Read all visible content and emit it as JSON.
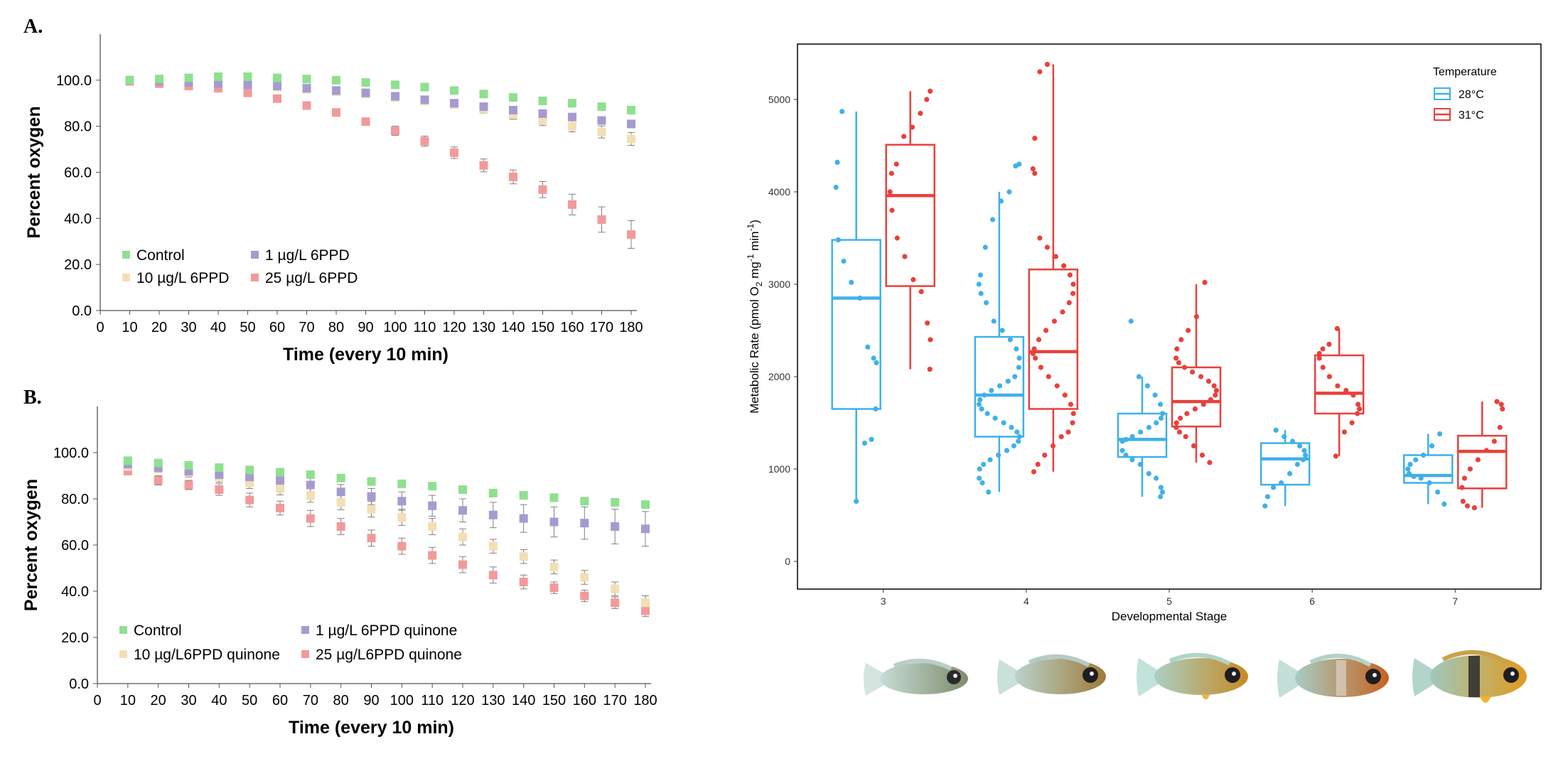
{
  "panel_a_label": "A.",
  "panel_b_label": "B.",
  "fish_images": [
    "stage-3-fish",
    "stage-4-fish",
    "stage-5-fish",
    "stage-6-fish",
    "stage-7-fish"
  ],
  "colors": {
    "control": "#8fe08f",
    "low": "#a59bd0",
    "mid": "#f2dfb4",
    "high": "#f29a9a",
    "c28": "#3fb1e8",
    "c31": "#e8413b"
  },
  "chart_data": [
    {
      "id": "panel-a",
      "type": "scatter",
      "title": "",
      "xlabel": "Time (every 10 min)",
      "ylabel": "Percent oxygen",
      "xlim": [
        0,
        180
      ],
      "ylim": [
        0,
        120
      ],
      "xticks": [
        "0",
        "10",
        "20",
        "30",
        "40",
        "50",
        "60",
        "70",
        "80",
        "90",
        "100",
        "110",
        "120",
        "130",
        "140",
        "150",
        "160",
        "170",
        "180"
      ],
      "yticks": [
        "0.0",
        "20.0",
        "40.0",
        "60.0",
        "80.0",
        "100.0"
      ],
      "x": [
        10,
        20,
        30,
        40,
        50,
        60,
        70,
        80,
        90,
        100,
        110,
        120,
        130,
        140,
        150,
        160,
        170,
        180
      ],
      "series": [
        {
          "name": "Control",
          "key": "control",
          "values": [
            100,
            100.5,
            101,
            101.5,
            101.5,
            101,
            100.5,
            100,
            99,
            98,
            97,
            95.5,
            94,
            92.5,
            91,
            90,
            88.5,
            87
          ],
          "errors": [
            0.3,
            0.4,
            0.5,
            0.5,
            0.5,
            0.5,
            0.5,
            0.5,
            0.6,
            0.6,
            0.7,
            0.7,
            0.8,
            0.8,
            0.9,
            1,
            1,
            1
          ]
        },
        {
          "name": "1 µg/L 6PPD",
          "key": "low",
          "values": [
            100,
            99.5,
            99,
            98.5,
            98,
            97.5,
            96.5,
            95.5,
            94.5,
            93,
            91.5,
            90,
            88.5,
            87,
            85.5,
            84,
            82.5,
            81
          ],
          "errors": [
            0.3,
            0.4,
            0.5,
            0.5,
            0.6,
            0.6,
            0.7,
            0.7,
            0.8,
            0.9,
            1,
            1,
            1.1,
            1.2,
            1.3,
            1.3,
            1.4,
            1.5
          ]
        },
        {
          "name": "10 µg/L 6PPD",
          "key": "mid",
          "values": [
            100,
            99.5,
            99,
            98.5,
            98,
            97,
            96,
            95,
            94,
            92.5,
            91,
            89.5,
            87.5,
            85,
            82.5,
            80,
            77.5,
            74.5
          ],
          "errors": [
            0.5,
            0.6,
            0.7,
            0.8,
            0.8,
            0.9,
            1,
            1.1,
            1.2,
            1.3,
            1.5,
            1.6,
            1.8,
            2,
            2.2,
            2.4,
            2.6,
            2.8
          ]
        },
        {
          "name": "25 µg/L 6PPD",
          "key": "high",
          "values": [
            99.5,
            98.5,
            97.5,
            96.5,
            94.5,
            92,
            89,
            86,
            82,
            78,
            73.5,
            68.5,
            63,
            58,
            52.5,
            46,
            39.5,
            33
          ],
          "errors": [
            0.5,
            0.6,
            0.7,
            0.8,
            0.9,
            1,
            1.1,
            1.3,
            1.5,
            2,
            2.2,
            2.5,
            2.8,
            3,
            3.5,
            4.5,
            5.5,
            6
          ]
        }
      ],
      "legend": "lower-left"
    },
    {
      "id": "panel-b",
      "type": "scatter",
      "title": "",
      "xlabel": "Time (every 10 min)",
      "ylabel": "Percent oxygen",
      "xlim": [
        0,
        180
      ],
      "ylim": [
        0,
        120
      ],
      "xticks": [
        "0",
        "10",
        "20",
        "30",
        "40",
        "50",
        "60",
        "70",
        "80",
        "90",
        "100",
        "110",
        "120",
        "130",
        "140",
        "150",
        "160",
        "170",
        "180"
      ],
      "yticks": [
        "0.0",
        "20.0",
        "40.0",
        "60.0",
        "80.0",
        "100.0"
      ],
      "x": [
        10,
        20,
        30,
        40,
        50,
        60,
        70,
        80,
        90,
        100,
        110,
        120,
        130,
        140,
        150,
        160,
        170,
        180
      ],
      "series": [
        {
          "name": "Control",
          "key": "control",
          "values": [
            96.5,
            95.5,
            94.5,
            93.5,
            92.5,
            91.5,
            90.5,
            89,
            87.5,
            86.5,
            85.5,
            84,
            82.5,
            81.5,
            80.5,
            79,
            78.5,
            77.5
          ],
          "errors": [
            1,
            1,
            1,
            1,
            1,
            1,
            1,
            1,
            1,
            1,
            1,
            1,
            1.2,
            1.2,
            1.3,
            1.3,
            1.4,
            1.5
          ]
        },
        {
          "name": "1 µg/L 6PPD quinone",
          "key": "low",
          "values": [
            95,
            93.5,
            92,
            90.5,
            89.5,
            88,
            86,
            83,
            81,
            79,
            77,
            75,
            73,
            71.5,
            70,
            69.5,
            68,
            67
          ],
          "errors": [
            1.5,
            1.6,
            1.8,
            2,
            2.2,
            2.5,
            3,
            3.2,
            3.5,
            4,
            4.5,
            5,
            5.5,
            6,
            6.5,
            7,
            7.5,
            7.5
          ]
        },
        {
          "name": "10 µg/L6PPD quinone",
          "key": "mid",
          "values": [
            94,
            93,
            91.5,
            89.5,
            87,
            84.5,
            81.5,
            78.5,
            75.5,
            72,
            68,
            63.5,
            59.5,
            55,
            50.5,
            46,
            41,
            35
          ],
          "errors": [
            1.5,
            1.7,
            2,
            2.3,
            2.5,
            2.8,
            3,
            3.2,
            3.4,
            3.5,
            3.5,
            3.5,
            3,
            3,
            3,
            3,
            3,
            3
          ]
        },
        {
          "name": "25 µg/L6PPD quinone",
          "key": "high",
          "values": [
            92,
            88,
            86,
            84,
            79.5,
            76,
            71.5,
            68,
            63,
            59.5,
            55.5,
            51.5,
            47,
            44,
            41.5,
            38,
            35,
            31.5
          ],
          "errors": [
            1.5,
            2,
            2,
            2.5,
            3,
            3,
            3.5,
            3.5,
            3.5,
            3.5,
            3.5,
            3.5,
            3.5,
            3,
            2.5,
            2.5,
            2.5,
            2.5
          ]
        }
      ],
      "legend": "lower-left"
    },
    {
      "id": "panel-c",
      "type": "box",
      "title": "",
      "xlabel": "Developmental Stage",
      "ylabel": "Metabolic Rate (pmol O₂ mg⁻¹ min⁻¹)",
      "ylabel_parts": [
        "Metabolic Rate (pmol O",
        "2",
        " mg",
        "-1",
        " min",
        "-1",
        ")"
      ],
      "categories": [
        "3",
        "4",
        "5",
        "6",
        "7"
      ],
      "ylim": [
        -300,
        5600
      ],
      "yticks": [
        "0",
        "1000",
        "2000",
        "3000",
        "4000",
        "5000"
      ],
      "legend_title": "Temperature",
      "legend": "top-right",
      "series": [
        {
          "name": "28°C",
          "key": "c28",
          "boxes": [
            {
              "stage": "3",
              "min": 650,
              "q1": 1650,
              "median": 2850,
              "q3": 3480,
              "max": 4870,
              "points": [
                650,
                1280,
                1320,
                1650,
                2150,
                2200,
                2320,
                2850,
                3020,
                3250,
                3480,
                4050,
                4320,
                4870
              ]
            },
            {
              "stage": "4",
              "min": 750,
              "q1": 1350,
              "median": 1800,
              "q3": 2430,
              "max": 4000,
              "points": [
                750,
                850,
                900,
                1000,
                1050,
                1100,
                1150,
                1200,
                1250,
                1300,
                1350,
                1400,
                1450,
                1500,
                1550,
                1600,
                1650,
                1700,
                1750,
                1800,
                1850,
                1900,
                1950,
                2000,
                2100,
                2200,
                2300,
                2400,
                2500,
                2600,
                2800,
                2900,
                3000,
                3100,
                3400,
                3700,
                3900,
                4000,
                4280,
                4300
              ]
            },
            {
              "stage": "5",
              "min": 700,
              "q1": 1130,
              "median": 1320,
              "q3": 1600,
              "max": 2000,
              "points": [
                700,
                750,
                800,
                900,
                950,
                1050,
                1100,
                1150,
                1200,
                1300,
                1320,
                1350,
                1400,
                1450,
                1500,
                1550,
                1600,
                1700,
                1800,
                1900,
                2000,
                2600
              ]
            },
            {
              "stage": "6",
              "min": 600,
              "q1": 830,
              "median": 1110,
              "q3": 1280,
              "max": 1420,
              "points": [
                600,
                700,
                800,
                850,
                950,
                1050,
                1100,
                1150,
                1200,
                1250,
                1300,
                1350,
                1420
              ]
            },
            {
              "stage": "7",
              "min": 620,
              "q1": 850,
              "median": 930,
              "q3": 1150,
              "max": 1380,
              "points": [
                620,
                750,
                850,
                900,
                920,
                950,
                1000,
                1050,
                1100,
                1150,
                1250,
                1380
              ]
            }
          ]
        },
        {
          "name": "31°C",
          "key": "c31",
          "boxes": [
            {
              "stage": "3",
              "min": 2080,
              "q1": 2980,
              "median": 3960,
              "q3": 4510,
              "max": 5090,
              "points": [
                2080,
                2400,
                2580,
                2920,
                3050,
                3300,
                3500,
                3800,
                4000,
                4200,
                4300,
                4600,
                4700,
                4850,
                5000,
                5090
              ]
            },
            {
              "stage": "4",
              "min": 970,
              "q1": 1650,
              "median": 2270,
              "q3": 3160,
              "max": 5380,
              "points": [
                970,
                1050,
                1150,
                1250,
                1350,
                1400,
                1500,
                1600,
                1700,
                1800,
                1900,
                2000,
                2100,
                2200,
                2250,
                2300,
                2400,
                2500,
                2600,
                2700,
                2800,
                2900,
                3000,
                3100,
                3200,
                3300,
                3400,
                3500,
                4200,
                4250,
                4580,
                5300,
                5380
              ]
            },
            {
              "stage": "5",
              "min": 1070,
              "q1": 1460,
              "median": 1730,
              "q3": 2100,
              "max": 3000,
              "points": [
                1070,
                1150,
                1250,
                1350,
                1400,
                1450,
                1500,
                1550,
                1600,
                1650,
                1700,
                1750,
                1800,
                1850,
                1900,
                1950,
                2000,
                2050,
                2100,
                2150,
                2200,
                2300,
                2400,
                2500,
                2650,
                3020
              ]
            },
            {
              "stage": "6",
              "min": 1140,
              "q1": 1600,
              "median": 1820,
              "q3": 2230,
              "max": 2520,
              "points": [
                1140,
                1400,
                1500,
                1600,
                1650,
                1700,
                1800,
                1850,
                1900,
                2000,
                2100,
                2200,
                2250,
                2300,
                2350,
                2520
              ]
            },
            {
              "stage": "7",
              "min": 580,
              "q1": 790,
              "median": 1190,
              "q3": 1360,
              "max": 1730,
              "points": [
                580,
                600,
                650,
                800,
                900,
                1000,
                1100,
                1200,
                1300,
                1450,
                1650,
                1700,
                1730
              ]
            }
          ]
        }
      ]
    }
  ]
}
